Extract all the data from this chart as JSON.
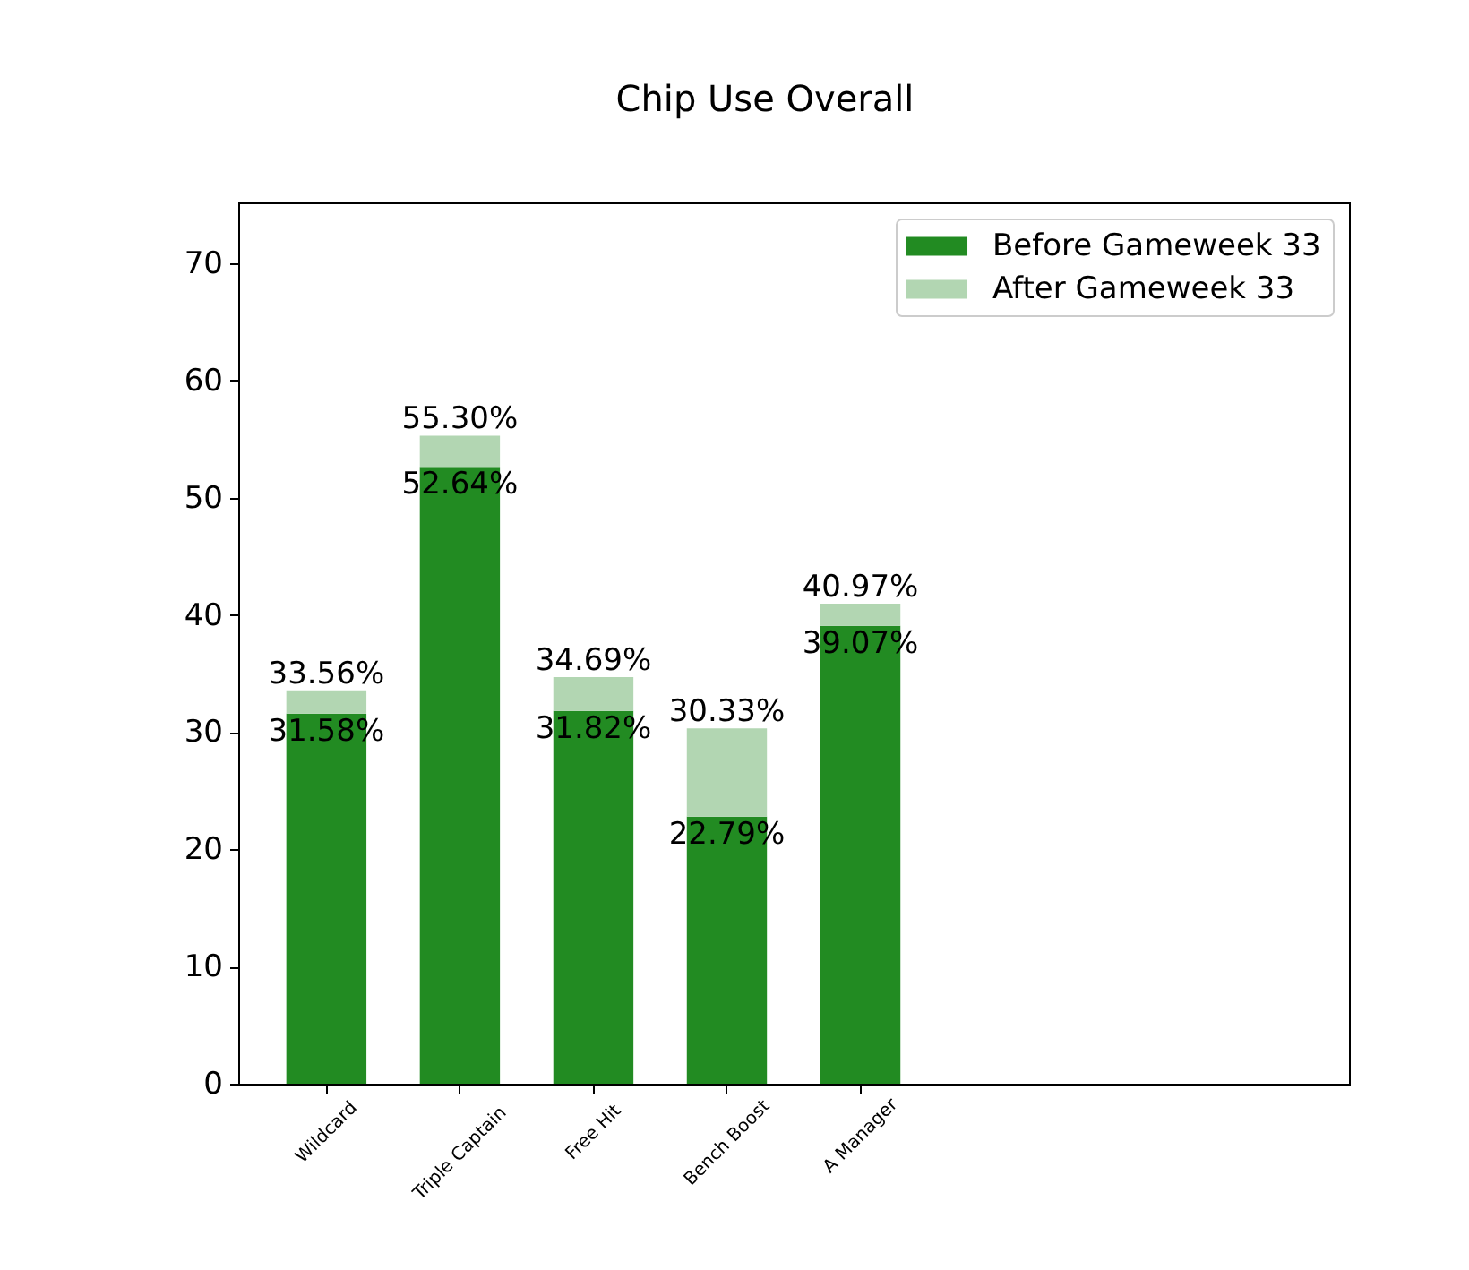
{
  "chart_data": {
    "type": "bar",
    "title": "Chip Use Overall",
    "categories": [
      "Wildcard",
      "Triple Captain",
      "Free Hit",
      "Bench Boost",
      "A Manager"
    ],
    "stacked": true,
    "series": [
      {
        "name": "Before Gameweek 33",
        "color": "#228b22",
        "values": [
          31.58,
          52.64,
          31.82,
          22.79,
          39.07
        ],
        "value_labels": [
          "31.58%",
          "52.64%",
          "31.82%",
          "22.79%",
          "39.07%"
        ]
      },
      {
        "name": "After Gameweek 33",
        "color": "#b2d6b2",
        "values": [
          1.98,
          2.66,
          2.87,
          7.54,
          1.9
        ]
      }
    ],
    "totals": [
      "33.56%",
      "55.30%",
      "34.69%",
      "30.33%",
      "40.97%"
    ],
    "ylim": [
      0,
      75.2
    ],
    "yticks": [
      0,
      10,
      20,
      30,
      40,
      50,
      60,
      70
    ],
    "legend": "top right"
  }
}
